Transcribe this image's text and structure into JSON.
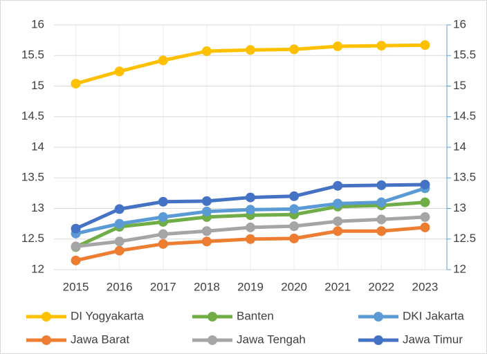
{
  "chart_data": {
    "type": "line",
    "categories": [
      "2015",
      "2016",
      "2017",
      "2018",
      "2019",
      "2020",
      "2021",
      "2022",
      "2023"
    ],
    "series": [
      {
        "name": "DI Yogyakarta",
        "color": "#FFC000",
        "values": [
          15.04,
          15.24,
          15.42,
          15.57,
          15.59,
          15.6,
          15.65,
          15.66,
          15.67
        ]
      },
      {
        "name": "Banten",
        "color": "#70AD47",
        "values": [
          12.37,
          12.7,
          12.78,
          12.86,
          12.89,
          12.9,
          13.03,
          13.05,
          13.1
        ]
      },
      {
        "name": "DKI Jakarta",
        "color": "#5B9BD5",
        "values": [
          12.59,
          12.75,
          12.86,
          12.95,
          12.98,
          12.99,
          13.08,
          13.1,
          13.33
        ]
      },
      {
        "name": "Jawa Barat",
        "color": "#ED7D31",
        "values": [
          12.15,
          12.31,
          12.42,
          12.46,
          12.5,
          12.51,
          12.63,
          12.63,
          12.69
        ]
      },
      {
        "name": "Jawa Tengah",
        "color": "#A5A5A5",
        "values": [
          12.38,
          12.46,
          12.58,
          12.63,
          12.69,
          12.71,
          12.79,
          12.82,
          12.86
        ]
      },
      {
        "name": "Jawa Timur",
        "color": "#4472C4",
        "values": [
          12.67,
          12.99,
          13.11,
          13.12,
          13.18,
          13.2,
          13.37,
          13.38,
          13.39
        ]
      }
    ],
    "ylim": [
      12,
      16
    ],
    "yticks": [
      12,
      12.5,
      13,
      13.5,
      14,
      14.5,
      15,
      15.5,
      16
    ],
    "y2lim": [
      12,
      16
    ],
    "y2ticks": [
      12,
      12.5,
      13,
      13.5,
      14,
      14.5,
      15,
      15.5,
      16
    ],
    "grid": true,
    "legend": "bottom"
  }
}
